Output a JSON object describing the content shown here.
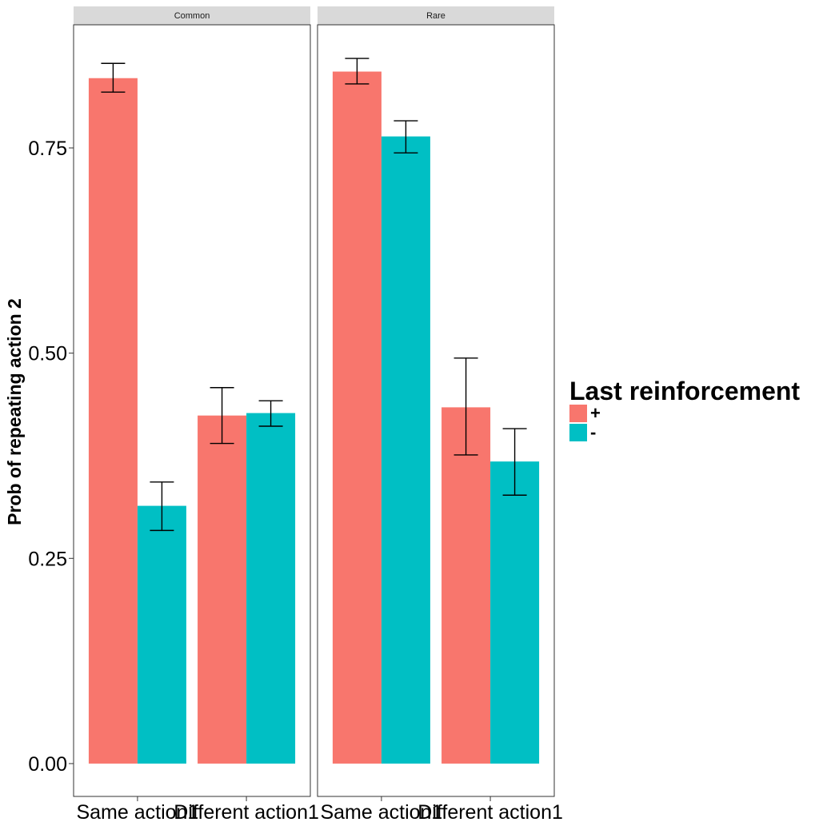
{
  "chart_data": {
    "type": "bar",
    "ylabel": "Prob of repeating action 2",
    "ylim": [
      -0.04,
      0.9
    ],
    "yticks": [
      0.0,
      0.25,
      0.5,
      0.75
    ],
    "ytick_labels": [
      "0.00",
      "0.25",
      "0.50",
      "0.75"
    ],
    "categories": [
      "Same action1",
      "Different action1"
    ],
    "grid": false,
    "legend": {
      "title": "Last reinforcement",
      "position": "right",
      "entries": [
        {
          "label": "+",
          "color": "#F8766D"
        },
        {
          "label": "-",
          "color": "#00BFC4"
        }
      ]
    },
    "panels": [
      {
        "title": "Common",
        "series": [
          {
            "name": "+",
            "color": "#F8766D",
            "values": [
              0.835,
              0.424
            ],
            "err_low": [
              0.818,
              0.39
            ],
            "err_high": [
              0.853,
              0.458
            ]
          },
          {
            "name": "-",
            "color": "#00BFC4",
            "values": [
              0.314,
              0.427
            ],
            "err_low": [
              0.284,
              0.411
            ],
            "err_high": [
              0.343,
              0.442
            ]
          }
        ]
      },
      {
        "title": "Rare",
        "series": [
          {
            "name": "+",
            "color": "#F8766D",
            "values": [
              0.843,
              0.434
            ],
            "err_low": [
              0.828,
              0.376
            ],
            "err_high": [
              0.859,
              0.494
            ]
          },
          {
            "name": "-",
            "color": "#00BFC4",
            "values": [
              0.764,
              0.368
            ],
            "err_low": [
              0.744,
              0.327
            ],
            "err_high": [
              0.783,
              0.408
            ]
          }
        ]
      }
    ]
  }
}
